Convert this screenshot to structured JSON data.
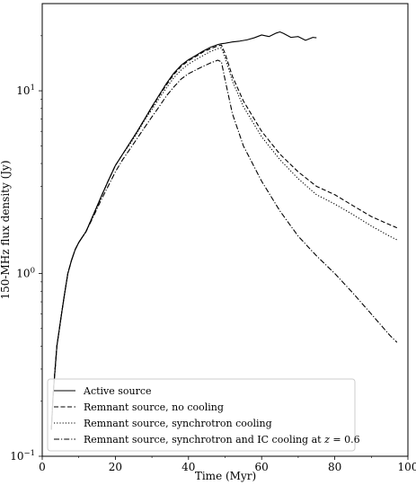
{
  "chart_data": {
    "type": "line",
    "xlabel": "Time (Myr)",
    "ylabel": "150-MHz flux density (Jy)",
    "xlim": [
      0,
      100
    ],
    "ylim": [
      0.1,
      30
    ],
    "yscale": "log",
    "grid": false,
    "legend_placement": "lower-left",
    "x_ticks": [
      {
        "value": 0,
        "label": "0"
      },
      {
        "value": 20,
        "label": "20"
      },
      {
        "value": 40,
        "label": "40"
      },
      {
        "value": 60,
        "label": "60"
      },
      {
        "value": 80,
        "label": "80"
      },
      {
        "value": 100,
        "label": "100"
      }
    ],
    "y_ticks": [
      {
        "value": 0.1,
        "base": "10",
        "exp": "−1"
      },
      {
        "value": 1,
        "base": "10",
        "exp": "0"
      },
      {
        "value": 10,
        "base": "10",
        "exp": "1"
      }
    ],
    "series": [
      {
        "name": "Active source",
        "dash": "solid",
        "x": [
          2.5,
          3,
          4,
          5,
          6,
          7,
          8,
          9,
          10,
          12,
          14,
          16,
          18,
          20,
          22,
          24,
          26,
          28,
          30,
          32,
          34,
          36,
          38,
          40,
          42,
          44,
          46,
          48,
          49,
          50,
          52,
          54,
          56,
          58,
          60,
          62,
          64,
          65,
          66,
          68,
          70,
          72,
          74,
          75
        ],
        "y": [
          0.14,
          0.22,
          0.4,
          0.55,
          0.75,
          1.0,
          1.18,
          1.35,
          1.48,
          1.7,
          2.1,
          2.6,
          3.2,
          3.9,
          4.5,
          5.2,
          6.0,
          7.0,
          8.2,
          9.5,
          11.0,
          12.5,
          13.8,
          14.8,
          15.6,
          16.5,
          17.3,
          17.9,
          18.1,
          18.2,
          18.5,
          18.7,
          19.0,
          19.5,
          20.2,
          19.8,
          20.7,
          21.0,
          20.6,
          19.6,
          19.8,
          18.9,
          19.6,
          19.5
        ]
      },
      {
        "name": "Remnant source, no cooling",
        "dash": "dashed",
        "x": [
          2.5,
          3,
          4,
          5,
          6,
          7,
          8,
          9,
          10,
          12,
          14,
          16,
          18,
          20,
          22,
          24,
          26,
          28,
          30,
          32,
          34,
          36,
          38,
          40,
          42,
          44,
          46,
          48,
          49,
          50,
          52,
          55,
          60,
          65,
          70,
          75,
          80,
          85,
          90,
          95,
          97
        ],
        "y": [
          0.14,
          0.22,
          0.4,
          0.55,
          0.75,
          1.0,
          1.18,
          1.35,
          1.48,
          1.7,
          2.1,
          2.6,
          3.2,
          3.9,
          4.5,
          5.2,
          6.0,
          7.0,
          8.1,
          9.4,
          10.8,
          12.3,
          13.6,
          14.6,
          15.4,
          16.3,
          17.0,
          17.6,
          17.8,
          16.0,
          12.0,
          8.8,
          6.0,
          4.5,
          3.6,
          3.0,
          2.7,
          2.35,
          2.05,
          1.85,
          1.78
        ]
      },
      {
        "name": "Remnant source, synchrotron cooling",
        "dash": "dotted",
        "x": [
          2.5,
          3,
          4,
          5,
          6,
          7,
          8,
          9,
          10,
          12,
          14,
          16,
          18,
          20,
          22,
          24,
          26,
          28,
          30,
          32,
          34,
          36,
          38,
          40,
          42,
          44,
          46,
          48,
          49,
          50,
          52,
          55,
          60,
          65,
          70,
          75,
          80,
          85,
          90,
          95,
          97
        ],
        "y": [
          0.14,
          0.22,
          0.4,
          0.55,
          0.75,
          1.0,
          1.18,
          1.35,
          1.48,
          1.7,
          2.1,
          2.6,
          3.2,
          3.9,
          4.5,
          5.1,
          5.9,
          6.9,
          7.9,
          9.1,
          10.4,
          11.8,
          13.0,
          14.0,
          14.8,
          15.6,
          16.4,
          17.0,
          17.2,
          15.2,
          11.3,
          8.2,
          5.6,
          4.2,
          3.3,
          2.7,
          2.4,
          2.1,
          1.82,
          1.6,
          1.53
        ]
      },
      {
        "name": "Remnant source, synchrotron and IC cooling at z = 0.6",
        "dash": "dashdot",
        "x": [
          2.5,
          3,
          4,
          5,
          6,
          7,
          8,
          9,
          10,
          12,
          14,
          16,
          18,
          20,
          22,
          24,
          26,
          28,
          30,
          32,
          34,
          36,
          38,
          40,
          42,
          44,
          46,
          48,
          49,
          50,
          52,
          55,
          60,
          65,
          70,
          75,
          80,
          85,
          90,
          95,
          97
        ],
        "y": [
          0.14,
          0.22,
          0.4,
          0.55,
          0.75,
          1.0,
          1.18,
          1.35,
          1.48,
          1.7,
          2.05,
          2.5,
          3.0,
          3.6,
          4.2,
          4.8,
          5.5,
          6.3,
          7.2,
          8.2,
          9.4,
          10.5,
          11.6,
          12.4,
          13.0,
          13.6,
          14.2,
          14.7,
          14.4,
          11.5,
          7.5,
          5.0,
          3.2,
          2.2,
          1.6,
          1.25,
          1.0,
          0.78,
          0.6,
          0.46,
          0.42
        ]
      }
    ]
  },
  "legend": {
    "entries": [
      {
        "pre": "Active source",
        "math": "",
        "post": ""
      },
      {
        "pre": "Remnant source, no cooling",
        "math": "",
        "post": ""
      },
      {
        "pre": "Remnant source, synchrotron cooling",
        "math": "",
        "post": ""
      },
      {
        "pre": "Remnant source, synchrotron and IC cooling at ",
        "math": "z",
        "post": " = 0.6"
      }
    ]
  }
}
